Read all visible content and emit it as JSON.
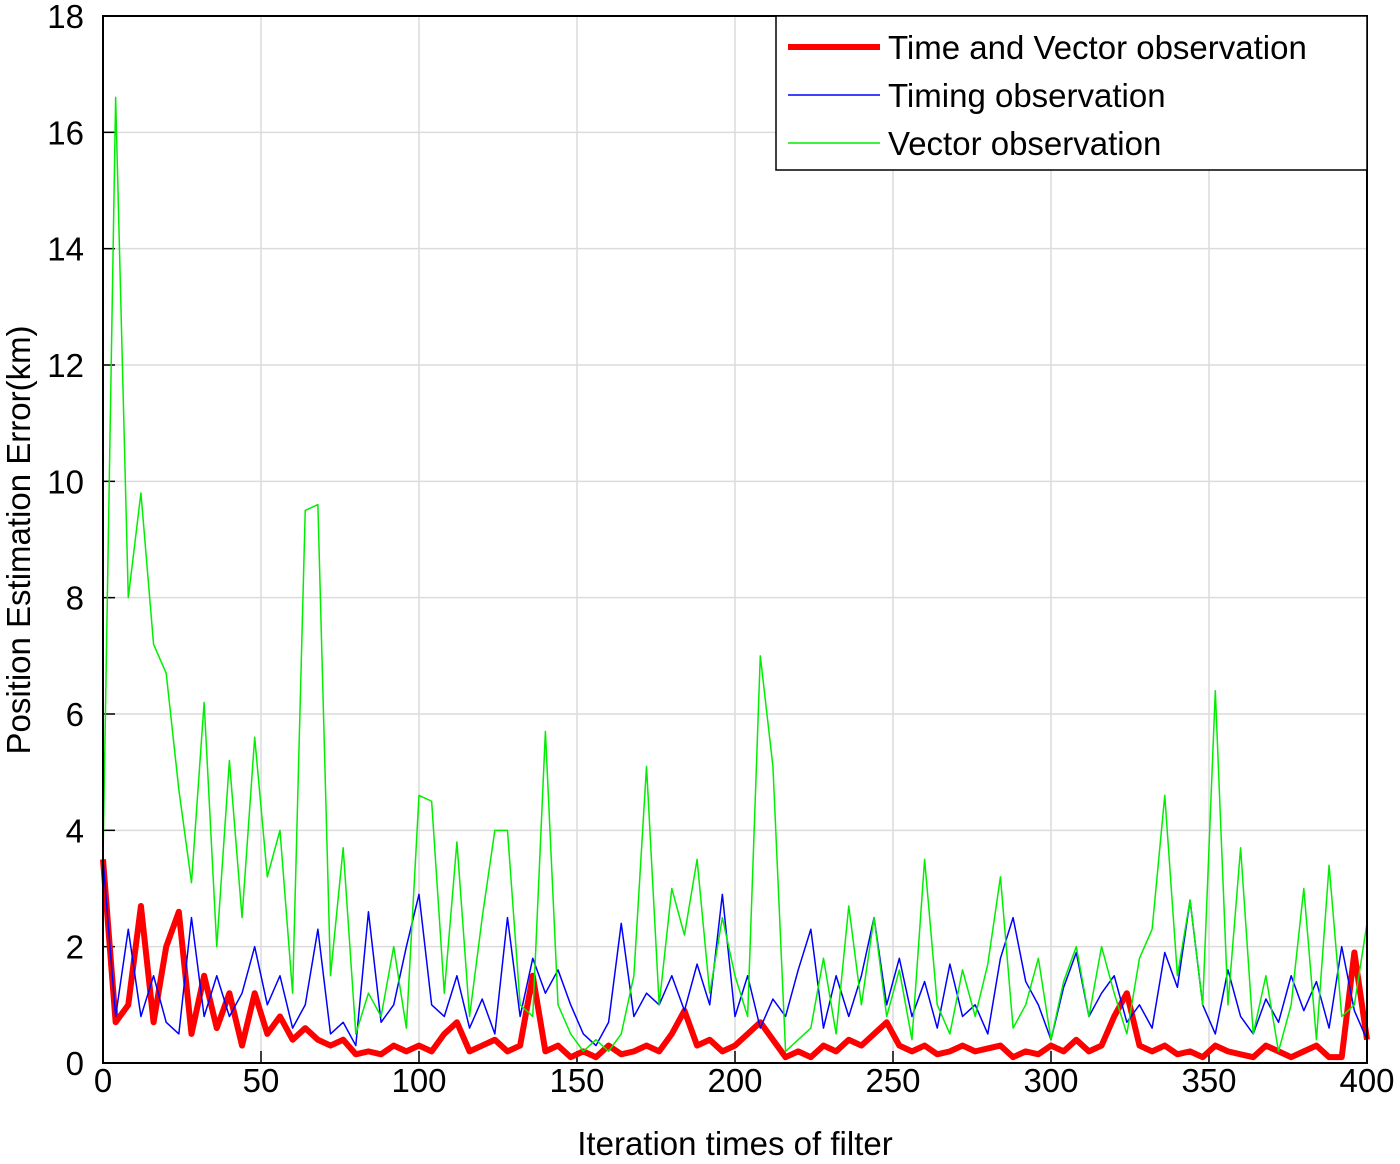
{
  "chart_data": {
    "type": "line",
    "xlabel": "Iteration times of filter",
    "ylabel": "Position Estimation Error(km)",
    "x": [
      0,
      4,
      8,
      12,
      16,
      20,
      24,
      28,
      32,
      36,
      40,
      44,
      48,
      52,
      56,
      60,
      64,
      68,
      72,
      76,
      80,
      84,
      88,
      92,
      96,
      100,
      104,
      108,
      112,
      116,
      120,
      124,
      128,
      132,
      136,
      140,
      144,
      148,
      152,
      156,
      160,
      164,
      168,
      172,
      176,
      180,
      184,
      188,
      192,
      196,
      200,
      204,
      208,
      212,
      216,
      220,
      224,
      228,
      232,
      236,
      240,
      244,
      248,
      252,
      256,
      260,
      264,
      268,
      272,
      276,
      280,
      284,
      288,
      292,
      296,
      300,
      304,
      308,
      312,
      316,
      320,
      324,
      328,
      332,
      336,
      340,
      344,
      348,
      352,
      356,
      360,
      364,
      368,
      372,
      376,
      380,
      384,
      388,
      392,
      396,
      400
    ],
    "series": [
      {
        "name": "Time and Vector observation",
        "color": "#ff0000",
        "width": 6,
        "values": [
          3.5,
          0.7,
          1.0,
          2.7,
          0.7,
          2.0,
          2.6,
          0.5,
          1.5,
          0.6,
          1.2,
          0.3,
          1.2,
          0.5,
          0.8,
          0.4,
          0.6,
          0.4,
          0.3,
          0.4,
          0.15,
          0.2,
          0.15,
          0.3,
          0.2,
          0.3,
          0.2,
          0.5,
          0.7,
          0.2,
          0.3,
          0.4,
          0.2,
          0.3,
          1.5,
          0.2,
          0.3,
          0.1,
          0.2,
          0.1,
          0.3,
          0.15,
          0.2,
          0.3,
          0.2,
          0.5,
          0.9,
          0.3,
          0.4,
          0.2,
          0.3,
          0.5,
          0.7,
          0.4,
          0.1,
          0.2,
          0.1,
          0.3,
          0.2,
          0.4,
          0.3,
          0.5,
          0.7,
          0.3,
          0.2,
          0.3,
          0.15,
          0.2,
          0.3,
          0.2,
          0.25,
          0.3,
          0.1,
          0.2,
          0.15,
          0.3,
          0.2,
          0.4,
          0.2,
          0.3,
          0.8,
          1.2,
          0.3,
          0.2,
          0.3,
          0.15,
          0.2,
          0.1,
          0.3,
          0.2,
          0.15,
          0.1,
          0.3,
          0.2,
          0.1,
          0.2,
          0.3,
          0.1,
          0.1,
          1.9,
          0.4
        ]
      },
      {
        "name": "Timing observation",
        "color": "#0000ff",
        "width": 1.5,
        "values": [
          3.5,
          0.8,
          2.3,
          0.8,
          1.5,
          0.7,
          0.5,
          2.5,
          0.8,
          1.5,
          0.8,
          1.2,
          2.0,
          1.0,
          1.5,
          0.6,
          1.0,
          2.3,
          0.5,
          0.7,
          0.3,
          2.6,
          0.7,
          1.0,
          2.0,
          2.9,
          1.0,
          0.8,
          1.5,
          0.6,
          1.1,
          0.5,
          2.5,
          0.8,
          1.8,
          1.2,
          1.6,
          1.0,
          0.5,
          0.3,
          0.7,
          2.4,
          0.8,
          1.2,
          1.0,
          1.5,
          0.9,
          1.7,
          1.0,
          2.9,
          0.8,
          1.5,
          0.6,
          1.1,
          0.8,
          1.6,
          2.3,
          0.6,
          1.5,
          0.8,
          1.5,
          2.5,
          1.0,
          1.8,
          0.8,
          1.4,
          0.6,
          1.7,
          0.8,
          1.0,
          0.5,
          1.8,
          2.5,
          1.4,
          1.0,
          0.4,
          1.3,
          1.9,
          0.8,
          1.2,
          1.5,
          0.7,
          1.0,
          0.6,
          1.9,
          1.3,
          2.8,
          1.0,
          0.5,
          1.6,
          0.8,
          0.5,
          1.1,
          0.7,
          1.5,
          0.9,
          1.4,
          0.6,
          2.0,
          0.9,
          0.4
        ]
      },
      {
        "name": "Vector observation",
        "color": "#00ee00",
        "width": 1.5,
        "values": [
          3.5,
          16.6,
          8.0,
          9.8,
          7.2,
          6.7,
          4.7,
          3.1,
          6.2,
          2.0,
          5.2,
          2.5,
          5.6,
          3.2,
          4.0,
          1.2,
          9.5,
          9.6,
          1.5,
          3.7,
          0.5,
          1.2,
          0.8,
          2.0,
          0.6,
          4.6,
          4.5,
          1.2,
          3.8,
          0.8,
          2.5,
          4.0,
          4.0,
          1.0,
          0.8,
          5.7,
          1.0,
          0.5,
          0.2,
          0.4,
          0.2,
          0.5,
          1.5,
          5.1,
          1.0,
          3.0,
          2.2,
          3.5,
          1.2,
          2.5,
          1.5,
          0.8,
          7.0,
          5.1,
          0.2,
          0.4,
          0.6,
          1.8,
          0.5,
          2.7,
          1.0,
          2.5,
          0.8,
          1.6,
          0.4,
          3.5,
          1.0,
          0.5,
          1.6,
          0.8,
          1.7,
          3.2,
          0.6,
          1.0,
          1.8,
          0.4,
          1.4,
          2.0,
          0.8,
          2.0,
          1.2,
          0.5,
          1.8,
          2.3,
          4.6,
          1.5,
          2.8,
          1.0,
          6.4,
          1.0,
          3.7,
          0.5,
          1.5,
          0.2,
          1.0,
          3.0,
          0.4,
          3.4,
          0.8,
          1.0,
          2.4
        ]
      }
    ],
    "xlim": [
      0,
      400
    ],
    "xticks": [
      0,
      50,
      100,
      150,
      200,
      250,
      300,
      350,
      400
    ],
    "ylim": [
      0,
      18
    ],
    "yticks": [
      0,
      2,
      4,
      6,
      8,
      10,
      12,
      14,
      16,
      18
    ],
    "grid": true,
    "legend": "northeast"
  }
}
